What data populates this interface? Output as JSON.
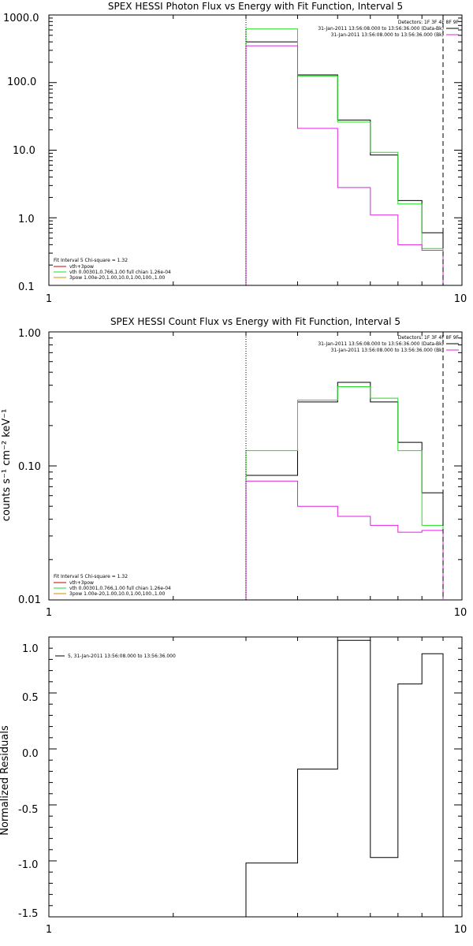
{
  "colors": {
    "black": "#000000",
    "green": "#22dd22",
    "magenta": "#dd22dd",
    "orange": "#e08800",
    "red": "#cc0000"
  },
  "chart_data": [
    {
      "type": "line",
      "title": "SPEX HESSI Photon Flux vs Energy with Fit Function, Interval 5",
      "xscale": "log",
      "yscale": "log",
      "xlim": [
        1,
        10
      ],
      "ylim": [
        0.1,
        1000
      ],
      "xticks": [
        "1",
        "10"
      ],
      "yticks": [
        "0.1",
        "1.0",
        "10.0",
        "100.0",
        "1000.0"
      ],
      "bin_edges": [
        3,
        4,
        5,
        6,
        7,
        8,
        9
      ],
      "series": [
        {
          "name": "31-Jan-2011 13:56:08.000 to 13:56:36.000 (Data-Bk)",
          "color": "black",
          "values": [
            400,
            130,
            28,
            8.5,
            1.8,
            0.6
          ]
        },
        {
          "name": "31-Jan-2011 13:56:08.000 to 13:56:36.000 (Bk)",
          "color": "magenta",
          "values": [
            350,
            21,
            2.8,
            1.1,
            0.4,
            0.33
          ]
        },
        {
          "name": "",
          "color": "green",
          "values": [
            620,
            125,
            26,
            9.3,
            1.6,
            0.35
          ]
        }
      ],
      "vlines": [
        {
          "x": 3,
          "style": "dotted"
        },
        {
          "x": 9,
          "style": "dashed"
        }
      ],
      "legend_right": [
        "Detectors: 1F 3F 4F 8F 9F",
        "31-Jan-2011 13:56:08.000 to 13:56:36.000 (Data-Bk)",
        "31-Jan-2011 13:56:08.000 to 13:56:36.000 (Bk)"
      ],
      "legend_left": [
        "Fit Interval 5   Chi-square = 1.32",
        "vth+3pow",
        "vth 0.00301,0.766,1.00   full chian 1.26e-04",
        "3pow 1.00e-20,1.00,10.0,1.00,100.,1.00"
      ],
      "legend_left_colors": [
        "",
        "red",
        "green",
        "orange"
      ]
    },
    {
      "type": "line",
      "title": "SPEX HESSI Count Flux vs Energy with Fit Function, Interval 5",
      "ylabel": "counts s⁻¹ cm⁻² keV⁻¹",
      "xscale": "log",
      "yscale": "log",
      "xlim": [
        1,
        10
      ],
      "ylim": [
        0.01,
        1.0
      ],
      "xticks": [
        "1",
        "10"
      ],
      "yticks": [
        "0.01",
        "0.10",
        "1.00"
      ],
      "bin_edges": [
        3,
        4,
        5,
        6,
        7,
        8,
        9
      ],
      "series": [
        {
          "name": "31-Jan-2011 13:56:08.000 to 13:56:36.000 (Data-Bk)",
          "color": "black",
          "values": [
            0.085,
            0.3,
            0.42,
            0.3,
            0.15,
            0.063
          ]
        },
        {
          "name": "31-Jan-2011 13:56:08.000 to 13:56:36.000 (Bk)",
          "color": "magenta",
          "values": [
            0.077,
            0.05,
            0.042,
            0.036,
            0.032,
            0.033
          ]
        },
        {
          "name": "",
          "color": "green",
          "values": [
            0.13,
            0.31,
            0.39,
            0.32,
            0.13,
            0.036
          ]
        }
      ],
      "vlines": [
        {
          "x": 3,
          "style": "dotted"
        },
        {
          "x": 9,
          "style": "dashed"
        }
      ],
      "legend_right": [
        "Detectors: 1F 3F 4F 8F 9F",
        "31-Jan-2011 13:56:08.000 to 13:56:36.000 (Data-Bk)",
        "31-Jan-2011 13:56:08.000 to 13:56:36.000 (Bk)"
      ],
      "legend_left": [
        "Fit Interval 5   Chi-square = 1.32",
        "vth+3pow",
        "vth 0.00301,0.766,1.00   full chian 1.26e-04",
        "3pow 1.00e-20,1.00,10.0,1.00,100.,1.00"
      ],
      "legend_left_colors": [
        "",
        "red",
        "green",
        "orange"
      ]
    },
    {
      "type": "line",
      "title": "",
      "ylabel": "Normalized Residuals",
      "xscale": "log",
      "yscale": "linear",
      "xlim": [
        1,
        10
      ],
      "ylim": [
        -1.5,
        1.0
      ],
      "xticks": [
        "1",
        "10"
      ],
      "yticks": [
        "-1.5",
        "-1.0",
        "-0.5",
        "0.0",
        "0.5",
        "1.0"
      ],
      "bin_edges": [
        3,
        4,
        5,
        6,
        7,
        8,
        9
      ],
      "series": [
        {
          "name": "5, 31-Jan-2011 13:56:08.000 to 13:56:36.000",
          "color": "black",
          "values": [
            -1.02,
            -0.18,
            0.97,
            -0.97,
            0.58,
            0.85
          ]
        }
      ],
      "legend": [
        "5, 31-Jan-2011 13:56:08.000 to 13:56:36.000"
      ]
    }
  ]
}
